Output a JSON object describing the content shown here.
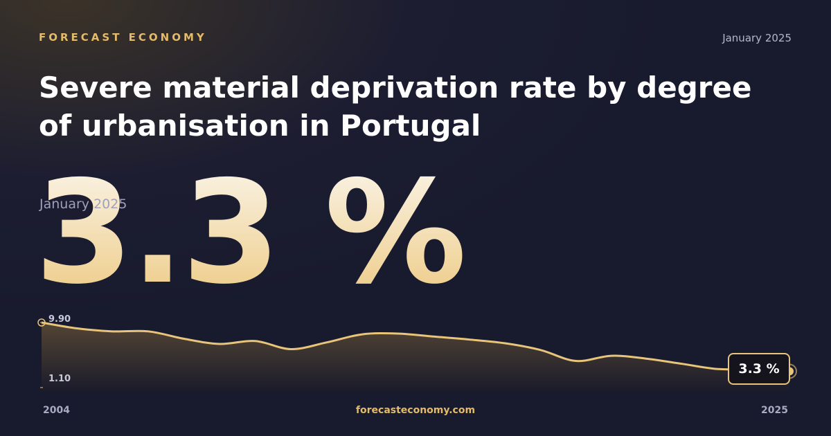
{
  "brand": "FORECAST ECONOMY",
  "date": "January 2025",
  "headline": "3.3 %",
  "headline_date": "January 2025",
  "footer": "forecasteconomy.com",
  "chart_data": {
    "type": "line",
    "title": "Severe material deprivation rate by degree of urbanisation in Portugal",
    "categories": [
      "2004",
      null,
      null,
      null,
      null,
      null,
      null,
      null,
      null,
      null,
      null,
      null,
      null,
      null,
      null,
      null,
      null,
      null,
      null,
      null,
      null,
      "2025"
    ],
    "series": [
      {
        "name": null,
        "color": "#e8c57a",
        "values": [
          9.9,
          9.1,
          8.7,
          8.7,
          7.7,
          7.0,
          7.4,
          6.3,
          7.2,
          8.3,
          8.4,
          8.0,
          7.6,
          7.1,
          6.2,
          4.7,
          5.4,
          5.0,
          4.3,
          3.6,
          3.6,
          3.3
        ],
        "value_labels": [
          null,
          null,
          null,
          null,
          null,
          null,
          null,
          null,
          null,
          null,
          null,
          null,
          null,
          null,
          null,
          null,
          null,
          null,
          null,
          null,
          null,
          "3.3 %"
        ]
      }
    ],
    "ylim": [
      1.1,
      9.9
    ],
    "yticks": [
      {
        "value": 9.9,
        "label": "9.90"
      },
      {
        "value": 1.1,
        "label": "1.10"
      }
    ],
    "grid": false
  }
}
